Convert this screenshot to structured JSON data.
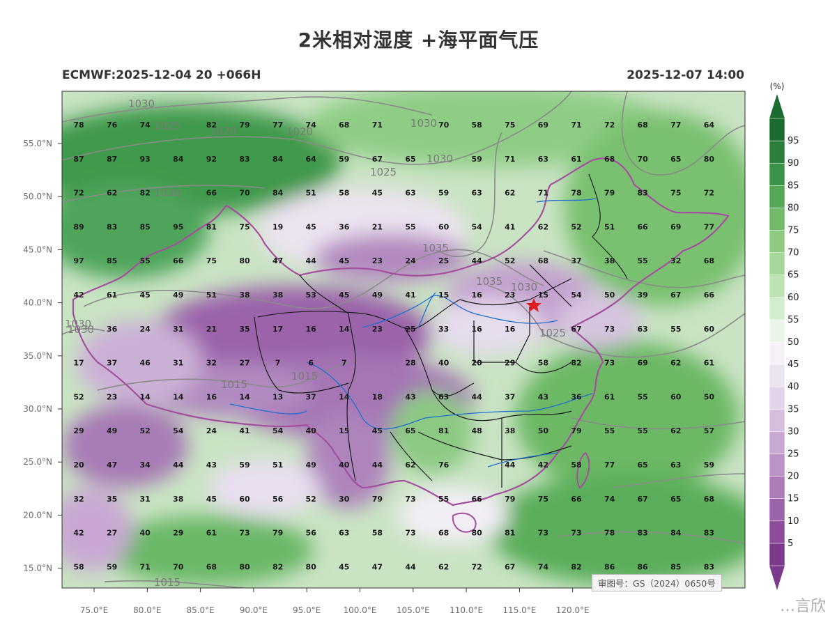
{
  "title": "2米相对湿度 +海平面气压",
  "model_run": "ECMWF:2025-12-04 20 +066H",
  "valid_time": "2025-12-07 14:00",
  "approval_number": "审图号：GS（2024）0650号",
  "watermark": "…言欣",
  "colorbar": {
    "unit": "(%)",
    "levels": [
      5,
      10,
      15,
      20,
      25,
      30,
      35,
      40,
      45,
      50,
      55,
      60,
      65,
      70,
      75,
      80,
      85,
      90,
      95
    ],
    "colors": [
      "#7b3a8c",
      "#8e4d9c",
      "#9d63aa",
      "#ad7bb9",
      "#bb93c6",
      "#c9a9d2",
      "#d6bfde",
      "#e2d3e8",
      "#ece3f0",
      "#f6f1f7",
      "#eaf5e7",
      "#d3edcc",
      "#bde3b2",
      "#a6d899",
      "#8ccb80",
      "#70ba69",
      "#54a755",
      "#3b9347",
      "#2a7f3c",
      "#1c6b30"
    ]
  },
  "axes": {
    "lon_labels": [
      "75.0°E",
      "80.0°E",
      "85.0°E",
      "90.0°E",
      "95.0°E",
      "100.0°E",
      "105.0°E",
      "110.0°E",
      "115.0°E",
      "120.0°E"
    ],
    "lat_labels": [
      "55.0°N",
      "50.0°N",
      "45.0°N",
      "40.0°N",
      "35.0°N",
      "30.0°N",
      "25.0°N",
      "20.0°N",
      "15.0°N"
    ]
  },
  "isobar_labels": [
    "1030",
    "1025",
    "1020",
    "1020",
    "1030",
    "1030",
    "1025",
    "1030",
    "1035",
    "1035",
    "1030",
    "1025",
    "1015",
    "1015",
    "1030",
    "1030",
    "1015"
  ],
  "grid_values": [
    [
      78,
      76,
      74,
      "",
      82,
      79,
      77,
      74,
      68,
      71,
      "",
      70,
      58,
      75,
      69,
      71,
      72,
      68,
      77,
      64
    ],
    [
      87,
      87,
      93,
      84,
      92,
      83,
      84,
      64,
      59,
      67,
      65,
      "",
      59,
      71,
      63,
      61,
      68,
      70,
      65,
      80
    ],
    [
      72,
      62,
      82,
      "",
      66,
      70,
      84,
      51,
      58,
      45,
      63,
      59,
      63,
      62,
      71,
      78,
      79,
      83,
      75,
      72
    ],
    [
      89,
      83,
      85,
      95,
      81,
      75,
      19,
      45,
      36,
      21,
      55,
      60,
      54,
      41,
      62,
      52,
      51,
      66,
      69,
      77
    ],
    [
      97,
      85,
      55,
      66,
      75,
      80,
      47,
      44,
      45,
      23,
      24,
      25,
      44,
      52,
      68,
      37,
      38,
      55,
      32,
      68
    ],
    [
      42,
      61,
      45,
      49,
      51,
      38,
      38,
      53,
      45,
      49,
      41,
      15,
      16,
      23,
      15,
      54,
      50,
      39,
      67,
      66
    ],
    [
      "",
      36,
      24,
      31,
      21,
      35,
      17,
      16,
      14,
      23,
      25,
      33,
      16,
      16,
      "",
      67,
      73,
      63,
      55,
      60
    ],
    [
      17,
      37,
      46,
      31,
      32,
      27,
      7,
      6,
      7,
      "",
      28,
      40,
      20,
      29,
      58,
      82,
      73,
      69,
      62,
      61
    ],
    [
      52,
      23,
      14,
      14,
      16,
      14,
      13,
      37,
      14,
      18,
      43,
      63,
      44,
      37,
      43,
      36,
      61,
      55,
      60,
      50
    ],
    [
      29,
      49,
      52,
      54,
      24,
      41,
      54,
      40,
      15,
      45,
      65,
      81,
      48,
      38,
      50,
      79,
      55,
      55,
      62,
      57
    ],
    [
      20,
      47,
      34,
      44,
      43,
      59,
      51,
      49,
      40,
      44,
      62,
      76,
      "",
      44,
      42,
      58,
      77,
      65,
      63,
      59
    ],
    [
      32,
      35,
      31,
      38,
      45,
      60,
      56,
      52,
      30,
      79,
      73,
      55,
      66,
      79,
      75,
      66,
      74,
      67,
      65,
      68
    ],
    [
      42,
      27,
      40,
      29,
      61,
      73,
      79,
      56,
      63,
      58,
      73,
      68,
      80,
      81,
      73,
      73,
      78,
      83,
      84,
      83
    ],
    [
      58,
      59,
      71,
      70,
      68,
      80,
      82,
      80,
      45,
      47,
      44,
      62,
      72,
      67,
      74,
      82,
      86,
      86,
      85,
      83
    ]
  ]
}
